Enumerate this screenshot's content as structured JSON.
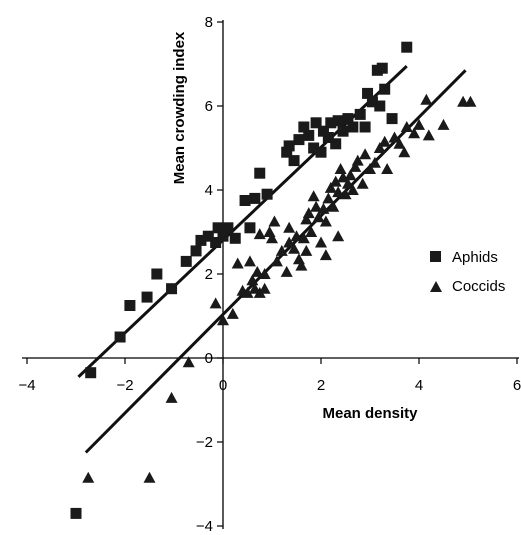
{
  "chart_data": {
    "type": "scatter",
    "xlabel": "Mean density",
    "ylabel": "Mean crowding index",
    "xlim": [
      -4,
      6
    ],
    "ylim": [
      -4,
      8
    ],
    "x_ticks": [
      -4,
      -2,
      0,
      2,
      4,
      6
    ],
    "y_ticks": [
      -4,
      -2,
      0,
      2,
      4,
      6,
      8
    ],
    "x_tick_labels": [
      "−4",
      "−2",
      "0",
      "2",
      "4",
      "6"
    ],
    "y_tick_labels": [
      "−4",
      "−2",
      "0",
      "2",
      "4",
      "6",
      "8"
    ],
    "grid": false,
    "legend_position": "right",
    "series": [
      {
        "name": "Aphids",
        "marker": "square",
        "color": "#1a1a1a",
        "fit_line": {
          "x": [
            -2.95,
            3.75
          ],
          "y": [
            -0.45,
            6.95
          ]
        },
        "points": [
          [
            -3.0,
            -3.7
          ],
          [
            -2.7,
            -0.35
          ],
          [
            -2.1,
            0.5
          ],
          [
            -1.9,
            1.25
          ],
          [
            -1.55,
            1.45
          ],
          [
            -1.35,
            2.0
          ],
          [
            -1.05,
            1.65
          ],
          [
            -0.75,
            2.3
          ],
          [
            -0.55,
            2.55
          ],
          [
            -0.45,
            2.8
          ],
          [
            -0.3,
            2.9
          ],
          [
            -0.15,
            2.75
          ],
          [
            -0.1,
            3.1
          ],
          [
            0.0,
            2.9
          ],
          [
            0.1,
            3.1
          ],
          [
            0.25,
            2.85
          ],
          [
            0.45,
            3.75
          ],
          [
            0.55,
            3.1
          ],
          [
            0.65,
            3.8
          ],
          [
            0.75,
            4.4
          ],
          [
            0.9,
            3.9
          ],
          [
            1.3,
            4.9
          ],
          [
            1.35,
            5.05
          ],
          [
            1.45,
            4.7
          ],
          [
            1.55,
            5.2
          ],
          [
            1.65,
            5.5
          ],
          [
            1.75,
            5.3
          ],
          [
            1.85,
            5.0
          ],
          [
            1.9,
            5.6
          ],
          [
            2.0,
            4.9
          ],
          [
            2.05,
            5.4
          ],
          [
            2.15,
            5.25
          ],
          [
            2.2,
            5.6
          ],
          [
            2.3,
            5.1
          ],
          [
            2.35,
            5.65
          ],
          [
            2.45,
            5.4
          ],
          [
            2.55,
            5.7
          ],
          [
            2.65,
            5.5
          ],
          [
            2.8,
            5.8
          ],
          [
            2.9,
            5.5
          ],
          [
            2.95,
            6.3
          ],
          [
            3.05,
            6.1
          ],
          [
            3.15,
            6.85
          ],
          [
            3.25,
            6.9
          ],
          [
            3.3,
            6.4
          ],
          [
            3.2,
            6.0
          ],
          [
            3.45,
            5.7
          ],
          [
            3.75,
            7.4
          ]
        ]
      },
      {
        "name": "Coccids",
        "marker": "triangle",
        "color": "#1a1a1a",
        "fit_line": {
          "x": [
            -2.8,
            4.95
          ],
          "y": [
            -2.25,
            6.85
          ]
        },
        "points": [
          [
            -2.75,
            -2.85
          ],
          [
            -1.5,
            -2.85
          ],
          [
            -1.05,
            -0.95
          ],
          [
            -0.7,
            -0.1
          ],
          [
            -0.15,
            1.3
          ],
          [
            0.0,
            0.9
          ],
          [
            0.2,
            1.05
          ],
          [
            0.3,
            2.25
          ],
          [
            0.4,
            1.6
          ],
          [
            0.5,
            1.55
          ],
          [
            0.6,
            1.85
          ],
          [
            0.65,
            1.65
          ],
          [
            0.7,
            2.05
          ],
          [
            0.75,
            1.55
          ],
          [
            0.85,
            1.65
          ],
          [
            0.75,
            2.95
          ],
          [
            0.95,
            3.0
          ],
          [
            1.0,
            2.85
          ],
          [
            1.05,
            3.25
          ],
          [
            1.1,
            2.3
          ],
          [
            1.2,
            2.55
          ],
          [
            1.3,
            2.05
          ],
          [
            1.35,
            2.75
          ],
          [
            1.45,
            2.6
          ],
          [
            1.55,
            2.35
          ],
          [
            1.6,
            2.2
          ],
          [
            1.65,
            2.85
          ],
          [
            1.7,
            3.3
          ],
          [
            1.75,
            3.45
          ],
          [
            1.8,
            3.0
          ],
          [
            1.85,
            3.85
          ],
          [
            1.9,
            3.6
          ],
          [
            1.95,
            3.35
          ],
          [
            2.0,
            2.75
          ],
          [
            2.05,
            3.55
          ],
          [
            2.1,
            3.25
          ],
          [
            2.15,
            3.8
          ],
          [
            2.2,
            4.05
          ],
          [
            2.25,
            3.6
          ],
          [
            2.3,
            4.2
          ],
          [
            2.35,
            3.95
          ],
          [
            2.4,
            4.5
          ],
          [
            2.45,
            4.3
          ],
          [
            2.5,
            3.9
          ],
          [
            2.55,
            4.15
          ],
          [
            2.65,
            4.0
          ],
          [
            2.7,
            4.55
          ],
          [
            2.75,
            4.7
          ],
          [
            2.85,
            4.15
          ],
          [
            2.9,
            4.85
          ],
          [
            3.0,
            4.5
          ],
          [
            3.1,
            4.65
          ],
          [
            3.2,
            5.0
          ],
          [
            3.3,
            5.15
          ],
          [
            3.35,
            4.5
          ],
          [
            3.5,
            5.25
          ],
          [
            3.6,
            5.1
          ],
          [
            3.7,
            4.9
          ],
          [
            3.75,
            5.5
          ],
          [
            3.9,
            5.35
          ],
          [
            4.0,
            5.55
          ],
          [
            4.15,
            6.15
          ],
          [
            4.2,
            5.3
          ],
          [
            4.5,
            5.55
          ],
          [
            4.9,
            6.1
          ],
          [
            5.05,
            6.1
          ],
          [
            1.5,
            2.9
          ],
          [
            1.7,
            2.55
          ],
          [
            2.1,
            2.45
          ],
          [
            2.35,
            2.9
          ],
          [
            0.55,
            2.3
          ],
          [
            0.85,
            2.0
          ],
          [
            1.35,
            3.1
          ],
          [
            2.6,
            4.35
          ]
        ]
      }
    ]
  }
}
